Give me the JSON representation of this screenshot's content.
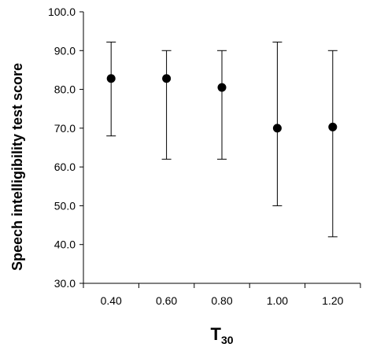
{
  "chart_data": {
    "type": "scatter",
    "title": "",
    "xlabel": "T",
    "xlabel_subscript": "30",
    "ylabel": "Speech intelligibility test score",
    "categories": [
      "0.40",
      "0.60",
      "0.80",
      "1.00",
      "1.20"
    ],
    "ylim": [
      30.0,
      100.0
    ],
    "yticks": [
      "30.0",
      "40.0",
      "50.0",
      "60.0",
      "70.0",
      "80.0",
      "90.0",
      "100.0"
    ],
    "grid": false,
    "legend": "none",
    "series": [
      {
        "values": [
          82.8,
          82.8,
          80.5,
          70.0,
          70.3
        ],
        "error_low": [
          68.0,
          62.0,
          62.0,
          50.0,
          42.0
        ],
        "error_high": [
          92.2,
          90.0,
          90.0,
          92.2,
          90.0
        ]
      }
    ],
    "colors": {
      "marker": "#000000",
      "axis": "#000000",
      "errorbar": "#000000"
    }
  }
}
